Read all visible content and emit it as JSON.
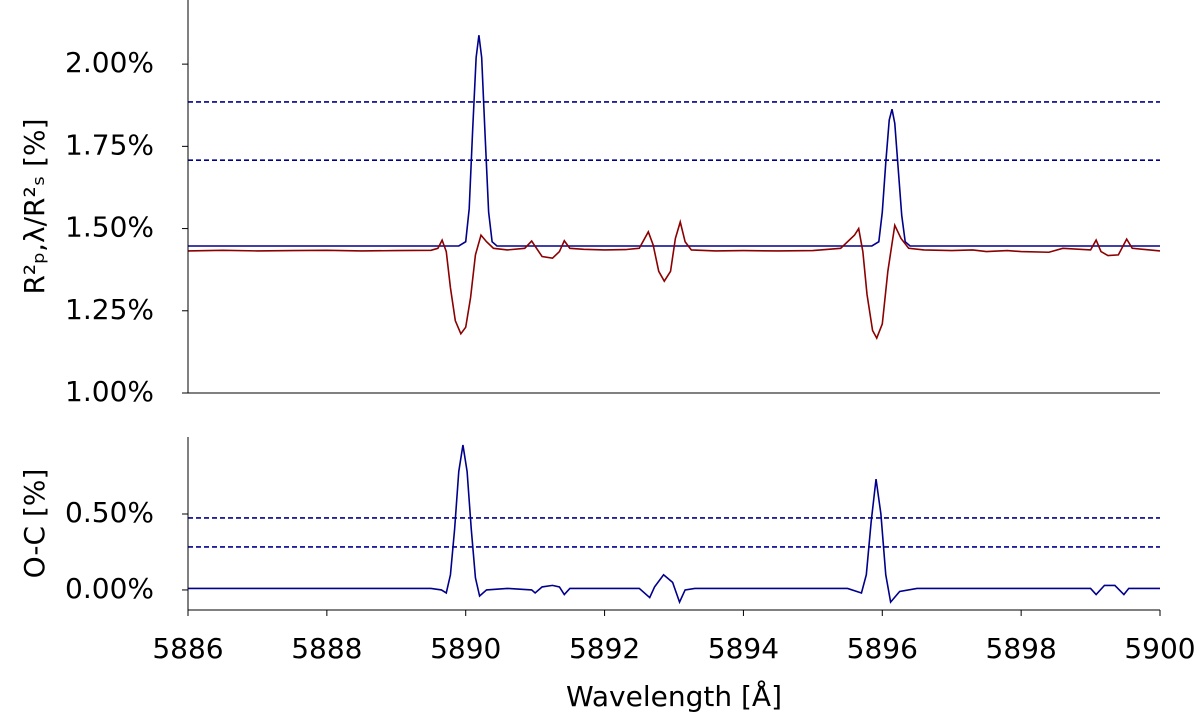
{
  "chart_data": [
    {
      "type": "line",
      "ylabel": "R²ₚ,λ/R²ₛ [%]",
      "xlim": [
        5886,
        5900
      ],
      "ylim": [
        1.0,
        2.195
      ],
      "yticks": [
        {
          "value": 1.0,
          "label": "1.00%"
        },
        {
          "value": 1.25,
          "label": "1.25%"
        },
        {
          "value": 1.5,
          "label": "1.50%"
        },
        {
          "value": 1.75,
          "label": "1.75%"
        },
        {
          "value": 2.0,
          "label": "2.00%"
        }
      ],
      "hlines": [
        1.885,
        1.708
      ],
      "hline_color": "#00008b",
      "series": [
        {
          "color": "#00008b",
          "x": [
            5886,
            5889.9,
            5890.0,
            5890.05,
            5890.1,
            5890.15,
            5890.19,
            5890.23,
            5890.28,
            5890.33,
            5890.38,
            5890.45,
            5895.85,
            5895.95,
            5896.0,
            5896.05,
            5896.1,
            5896.14,
            5896.18,
            5896.23,
            5896.28,
            5896.33,
            5896.4,
            5900
          ],
          "values": [
            1.447,
            1.447,
            1.46,
            1.56,
            1.8,
            2.02,
            2.088,
            2.02,
            1.78,
            1.55,
            1.46,
            1.447,
            1.447,
            1.46,
            1.55,
            1.7,
            1.83,
            1.863,
            1.82,
            1.68,
            1.54,
            1.46,
            1.447,
            1.447
          ]
        },
        {
          "color": "#8b0000",
          "x": [
            5886,
            5886.5,
            5887,
            5887.5,
            5888,
            5888.5,
            5889,
            5889.5,
            5889.6,
            5889.66,
            5889.72,
            5889.78,
            5889.85,
            5889.93,
            5890.0,
            5890.07,
            5890.14,
            5890.22,
            5890.3,
            5890.4,
            5890.6,
            5890.85,
            5890.95,
            5891.02,
            5891.1,
            5891.25,
            5891.35,
            5891.42,
            5891.5,
            5891.7,
            5892.0,
            5892.3,
            5892.5,
            5892.63,
            5892.7,
            5892.78,
            5892.86,
            5892.95,
            5893.02,
            5893.09,
            5893.16,
            5893.25,
            5893.6,
            5894,
            5894.5,
            5895,
            5895.4,
            5895.6,
            5895.66,
            5895.72,
            5895.78,
            5895.86,
            5895.92,
            5896.0,
            5896.08,
            5896.18,
            5896.27,
            5896.38,
            5896.6,
            5897,
            5897.3,
            5897.5,
            5897.8,
            5898,
            5898.4,
            5898.6,
            5899,
            5899.08,
            5899.15,
            5899.25,
            5899.4,
            5899.52,
            5899.6,
            5900
          ],
          "values": [
            1.432,
            1.434,
            1.432,
            1.433,
            1.434,
            1.432,
            1.433,
            1.434,
            1.44,
            1.465,
            1.43,
            1.32,
            1.22,
            1.18,
            1.2,
            1.29,
            1.42,
            1.48,
            1.46,
            1.44,
            1.435,
            1.44,
            1.462,
            1.44,
            1.415,
            1.41,
            1.43,
            1.463,
            1.44,
            1.437,
            1.435,
            1.436,
            1.44,
            1.49,
            1.45,
            1.37,
            1.34,
            1.37,
            1.47,
            1.52,
            1.46,
            1.435,
            1.432,
            1.433,
            1.432,
            1.433,
            1.44,
            1.48,
            1.5,
            1.43,
            1.3,
            1.19,
            1.167,
            1.21,
            1.37,
            1.51,
            1.47,
            1.44,
            1.435,
            1.433,
            1.435,
            1.43,
            1.433,
            1.43,
            1.428,
            1.44,
            1.435,
            1.465,
            1.43,
            1.418,
            1.42,
            1.468,
            1.44,
            1.432
          ]
        }
      ]
    },
    {
      "type": "line",
      "ylabel": "O-C [%]",
      "xlabel": "Wavelength [Å]",
      "xlim": [
        5886,
        5900
      ],
      "ylim": [
        -0.132,
        1.007
      ],
      "xticks": [
        5886,
        5888,
        5890,
        5892,
        5894,
        5896,
        5898,
        5900
      ],
      "yticks": [
        {
          "value": 0,
          "label": "0.00%"
        },
        {
          "value": 0.5,
          "label": "0.50%"
        }
      ],
      "hlines": [
        0.474,
        0.283
      ],
      "hline_color": "#00008b",
      "series": [
        {
          "color": "#00008b",
          "x": [
            5886,
            5889.5,
            5889.65,
            5889.72,
            5889.78,
            5889.84,
            5889.9,
            5889.96,
            5890.02,
            5890.08,
            5890.14,
            5890.2,
            5890.3,
            5890.6,
            5890.95,
            5891.0,
            5891.1,
            5891.25,
            5891.35,
            5891.42,
            5891.5,
            5892.5,
            5892.65,
            5892.72,
            5892.85,
            5892.98,
            5893.08,
            5893.16,
            5893.3,
            5895.5,
            5895.7,
            5895.77,
            5895.84,
            5895.91,
            5895.98,
            5896.05,
            5896.12,
            5896.25,
            5896.5,
            5899.0,
            5899.08,
            5899.2,
            5899.35,
            5899.48,
            5899.55,
            5900
          ],
          "values": [
            0.01,
            0.01,
            0.0,
            -0.02,
            0.1,
            0.4,
            0.78,
            0.954,
            0.78,
            0.4,
            0.08,
            -0.04,
            0.0,
            0.01,
            0.0,
            -0.02,
            0.02,
            0.03,
            0.02,
            -0.03,
            0.01,
            0.01,
            -0.05,
            0.02,
            0.1,
            0.05,
            -0.08,
            0.0,
            0.01,
            0.01,
            -0.02,
            0.1,
            0.45,
            0.73,
            0.5,
            0.1,
            -0.08,
            -0.01,
            0.01,
            0.01,
            -0.03,
            0.03,
            0.03,
            -0.03,
            0.01,
            0.01
          ]
        }
      ]
    }
  ]
}
